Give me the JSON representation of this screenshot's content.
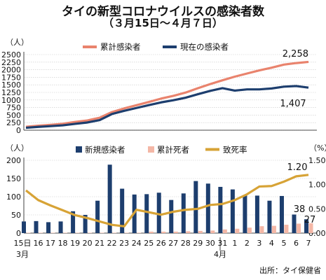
{
  "title": "タイの新型コロナウイルスの感染者数",
  "subtitle": "（３月15日～４月７日）",
  "source": "出所：タイ保健省",
  "colors": {
    "cumulative": "#e9836d",
    "current": "#1d3e6e",
    "new": "#1d3e6e",
    "deaths": "#f4b7a6",
    "fatality": "#d7a336"
  },
  "chart_data": [
    {
      "type": "line",
      "unit": "（人）",
      "categories": [
        "15日",
        "16",
        "17",
        "18",
        "19",
        "20",
        "21",
        "22",
        "23",
        "24",
        "25",
        "26",
        "27",
        "28",
        "29",
        "30",
        "31",
        "1",
        "2",
        "3",
        "4",
        "5",
        "6",
        "7"
      ],
      "month_labels": [
        "3月",
        "4月"
      ],
      "ylim": [
        0,
        2500
      ],
      "yticks": [
        "0",
        "250",
        "500",
        "750",
        "1000",
        "1250",
        "1500",
        "1750",
        "2000",
        "2250",
        "2500"
      ],
      "series": [
        {
          "name": "累計感染者",
          "values": [
            114,
            147,
            177,
            212,
            272,
            322,
            411,
            599,
            721,
            827,
            934,
            1045,
            1136,
            1245,
            1388,
            1524,
            1651,
            1771,
            1875,
            1978,
            2067,
            2169,
            2220,
            2258
          ]
        },
        {
          "name": "現在の感染者",
          "values": [
            80,
            110,
            135,
            160,
            210,
            255,
            335,
            535,
            640,
            735,
            830,
            920,
            990,
            1075,
            1190,
            1300,
            1390,
            1310,
            1350,
            1350,
            1380,
            1440,
            1460,
            1407
          ]
        }
      ],
      "end_labels": [
        "2,258",
        "1,407"
      ]
    },
    {
      "type": "bar",
      "unit": "（人）",
      "unit_right": "（%）",
      "categories": [
        "15日",
        "16",
        "17",
        "18",
        "19",
        "20",
        "21",
        "22",
        "23",
        "24",
        "25",
        "26",
        "27",
        "28",
        "29",
        "30",
        "31",
        "1",
        "2",
        "3",
        "4",
        "5",
        "6",
        "7"
      ],
      "ylim": [
        0,
        200
      ],
      "yticks": [
        "0",
        "50",
        "100",
        "150",
        "200"
      ],
      "y2lim": [
        0,
        1.5
      ],
      "y2ticks": [
        "0.00",
        "0.50",
        "1.00",
        "1.50"
      ],
      "series": [
        {
          "name": "新規感染者",
          "type": "bar",
          "values": [
            32,
            33,
            30,
            32,
            60,
            50,
            89,
            188,
            122,
            106,
            107,
            111,
            91,
            109,
            143,
            136,
            127,
            120,
            104,
            103,
            89,
            102,
            51,
            38
          ]
        },
        {
          "name": "累計死者",
          "type": "bar",
          "values": [
            1,
            1,
            1,
            1,
            1,
            1,
            1,
            1,
            1,
            1,
            4,
            4,
            4,
            5,
            6,
            7,
            10,
            12,
            15,
            19,
            20,
            23,
            26,
            27
          ]
        },
        {
          "name": "致死率",
          "type": "line",
          "axis": "right",
          "values": [
            0.88,
            0.68,
            0.57,
            0.47,
            0.37,
            0.31,
            0.24,
            0.17,
            0.14,
            0.48,
            0.43,
            0.38,
            0.44,
            0.48,
            0.5,
            0.58,
            0.6,
            0.68,
            0.8,
            0.96,
            0.97,
            1.06,
            1.17,
            1.2
          ]
        }
      ],
      "annotations": [
        "1.20",
        "38",
        "27"
      ]
    }
  ]
}
